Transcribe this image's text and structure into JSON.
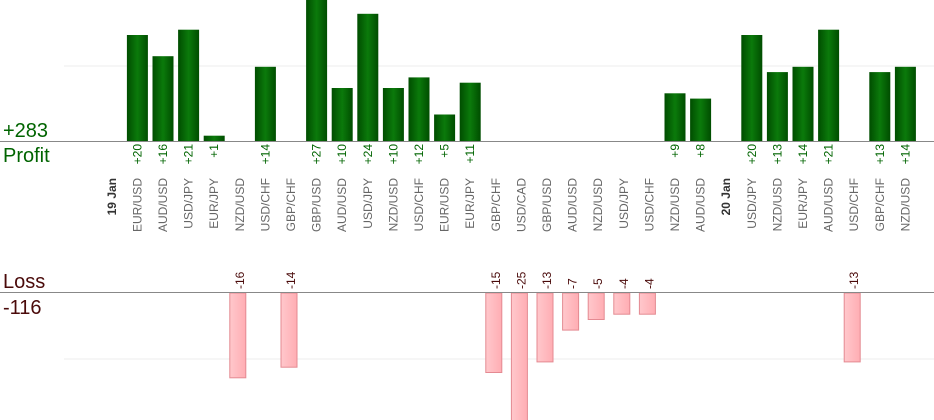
{
  "chart_data": {
    "type": "bar",
    "totals": {
      "profit_total": "+283",
      "profit_label": "Profit",
      "loss_label": "Loss",
      "loss_total": "-116"
    },
    "colors": {
      "profit_bar": "#0a6e0a",
      "profit_text": "#006400",
      "loss_bar": "#ffb8bd",
      "loss_text": "#4a0a0a",
      "axis": "#888888",
      "grid": "#eeeeee"
    },
    "entries": [
      {
        "kind": "date",
        "label": "19 Jan"
      },
      {
        "kind": "pair",
        "label": "EUR/USD",
        "value": 20
      },
      {
        "kind": "pair",
        "label": "AUD/USD",
        "value": 16
      },
      {
        "kind": "pair",
        "label": "USD/JPY",
        "value": 21
      },
      {
        "kind": "pair",
        "label": "EUR/JPY",
        "value": 1
      },
      {
        "kind": "pair",
        "label": "NZD/USD",
        "value": -16
      },
      {
        "kind": "pair",
        "label": "USD/CHF",
        "value": 14
      },
      {
        "kind": "pair",
        "label": "GBP/CHF",
        "value": -14
      },
      {
        "kind": "pair",
        "label": "GBP/USD",
        "value": 27
      },
      {
        "kind": "pair",
        "label": "AUD/USD",
        "value": 10
      },
      {
        "kind": "pair",
        "label": "USD/JPY",
        "value": 24
      },
      {
        "kind": "pair",
        "label": "NZD/USD",
        "value": 10
      },
      {
        "kind": "pair",
        "label": "USD/CHF",
        "value": 12
      },
      {
        "kind": "pair",
        "label": "EUR/USD",
        "value": 5
      },
      {
        "kind": "pair",
        "label": "EUR/JPY",
        "value": 11
      },
      {
        "kind": "pair",
        "label": "GBP/CHF",
        "value": -15
      },
      {
        "kind": "pair",
        "label": "USD/CAD",
        "value": -25
      },
      {
        "kind": "pair",
        "label": "GBP/USD",
        "value": -13
      },
      {
        "kind": "pair",
        "label": "AUD/USD",
        "value": -7
      },
      {
        "kind": "pair",
        "label": "NZD/USD",
        "value": -5
      },
      {
        "kind": "pair",
        "label": "USD/JPY",
        "value": -4
      },
      {
        "kind": "pair",
        "label": "USD/CHF",
        "value": -4
      },
      {
        "kind": "pair",
        "label": "NZD/USD",
        "value": 9
      },
      {
        "kind": "pair",
        "label": "AUD/USD",
        "value": 8
      },
      {
        "kind": "date",
        "label": "20 Jan"
      },
      {
        "kind": "pair",
        "label": "USD/JPY",
        "value": 20
      },
      {
        "kind": "pair",
        "label": "NZD/USD",
        "value": 13
      },
      {
        "kind": "pair",
        "label": "EUR/JPY",
        "value": 14
      },
      {
        "kind": "pair",
        "label": "AUD/USD",
        "value": 21
      },
      {
        "kind": "pair",
        "label": "USD/CHF",
        "value": -13
      },
      {
        "kind": "pair",
        "label": "GBP/CHF",
        "value": 13
      },
      {
        "kind": "pair",
        "label": "NZD/USD",
        "value": 14
      }
    ]
  }
}
